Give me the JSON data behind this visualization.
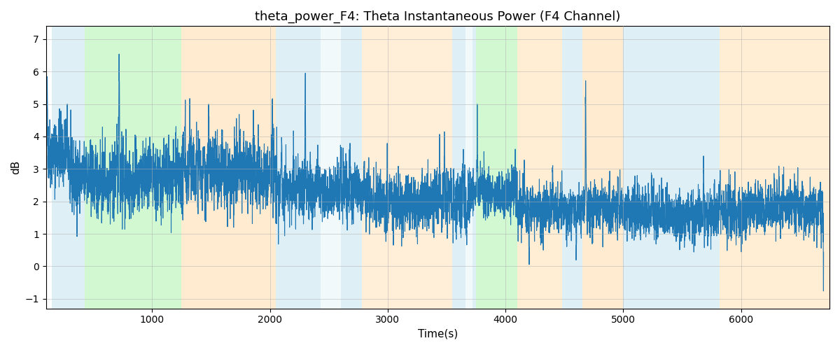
{
  "title": "theta_power_F4: Theta Instantaneous Power (F4 Channel)",
  "xlabel": "Time(s)",
  "ylabel": "dB",
  "ylim": [
    -1.3,
    7.4
  ],
  "xlim": [
    100,
    6750
  ],
  "bg_regions": [
    {
      "xmin": 150,
      "xmax": 430,
      "color": "#add8e6",
      "alpha": 0.4
    },
    {
      "xmin": 430,
      "xmax": 1250,
      "color": "#90ee90",
      "alpha": 0.4
    },
    {
      "xmin": 1250,
      "xmax": 2050,
      "color": "#ffd9a0",
      "alpha": 0.5
    },
    {
      "xmin": 2050,
      "xmax": 2430,
      "color": "#add8e6",
      "alpha": 0.4
    },
    {
      "xmin": 2430,
      "xmax": 2600,
      "color": "#add8e6",
      "alpha": 0.15
    },
    {
      "xmin": 2600,
      "xmax": 2780,
      "color": "#add8e6",
      "alpha": 0.4
    },
    {
      "xmin": 2780,
      "xmax": 3100,
      "color": "#ffd9a0",
      "alpha": 0.4
    },
    {
      "xmin": 3100,
      "xmax": 3550,
      "color": "#ffd9a0",
      "alpha": 0.4
    },
    {
      "xmin": 3550,
      "xmax": 3660,
      "color": "#add8e6",
      "alpha": 0.4
    },
    {
      "xmin": 3660,
      "xmax": 3720,
      "color": "#add8e6",
      "alpha": 0.15
    },
    {
      "xmin": 3720,
      "xmax": 3750,
      "color": "#add8e6",
      "alpha": 0.4
    },
    {
      "xmin": 3750,
      "xmax": 4100,
      "color": "#90ee90",
      "alpha": 0.4
    },
    {
      "xmin": 4100,
      "xmax": 4480,
      "color": "#ffd9a0",
      "alpha": 0.45
    },
    {
      "xmin": 4480,
      "xmax": 4650,
      "color": "#add8e6",
      "alpha": 0.4
    },
    {
      "xmin": 4650,
      "xmax": 5000,
      "color": "#ffd9a0",
      "alpha": 0.5
    },
    {
      "xmin": 5000,
      "xmax": 5820,
      "color": "#add8e6",
      "alpha": 0.4
    },
    {
      "xmin": 5820,
      "xmax": 6750,
      "color": "#ffd9a0",
      "alpha": 0.45
    }
  ],
  "line_color": "#1f77b4",
  "line_width": 0.8,
  "grid_color": "#b0b0b0",
  "grid_alpha": 0.7,
  "title_fontsize": 13,
  "axis_fontsize": 11,
  "xticks": [
    1000,
    2000,
    3000,
    4000,
    5000,
    6000
  ],
  "seed": 42,
  "n_points": 6600,
  "time_start": 101,
  "time_end": 6700
}
